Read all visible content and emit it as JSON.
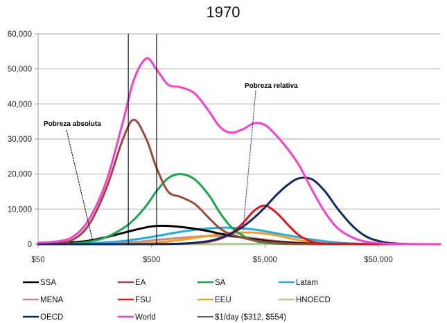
{
  "chart_data": {
    "type": "line",
    "title": "1970",
    "xlabel": "",
    "ylabel": "",
    "x_scale": "log",
    "xlim": [
      50,
      175000
    ],
    "ylim": [
      0,
      60000
    ],
    "grid": true,
    "legend_position": "bottom",
    "y_ticks": [
      "0",
      "10,000",
      "20,000",
      "30,000",
      "40,000",
      "50,000",
      "60,000"
    ],
    "y_tick_values": [
      0,
      10000,
      20000,
      30000,
      40000,
      50000,
      60000
    ],
    "x_ticks": [
      "$50",
      "$500",
      "$5,000",
      "$50,000"
    ],
    "x_tick_values": [
      50,
      500,
      5000,
      50000
    ],
    "vertical_lines": {
      "name": "$1/day ($312, $554)",
      "values": [
        312,
        554
      ],
      "color": "#000000"
    },
    "annotations": [
      {
        "text": "Pobreza absoluta",
        "points_to_x": 150,
        "points_to_y": 1500,
        "color": "#000000"
      },
      {
        "text": "Pobreza relativa",
        "points_to_x": 3200,
        "points_to_y": 3800,
        "color": "#3333cc"
      }
    ],
    "x": [
      50,
      70,
      100,
      140,
      200,
      280,
      350,
      450,
      550,
      700,
      900,
      1200,
      1600,
      2000,
      2500,
      3200,
      4000,
      5000,
      6300,
      8000,
      10000,
      13000,
      17000,
      22000,
      30000,
      40000,
      55000,
      75000,
      100000,
      175000
    ],
    "series": [
      {
        "name": "SSA",
        "color": "#000000",
        "values": [
          100,
          200,
          500,
          1000,
          2000,
          3200,
          4000,
          4800,
          5200,
          5200,
          4900,
          4400,
          3700,
          3000,
          2400,
          1900,
          1400,
          1000,
          700,
          450,
          300,
          180,
          100,
          60,
          30,
          15,
          5,
          0,
          0,
          0
        ]
      },
      {
        "name": "EA",
        "color": "#a0463c",
        "values": [
          100,
          300,
          1200,
          5500,
          16000,
          30000,
          35500,
          30000,
          22000,
          15000,
          13500,
          11500,
          7500,
          4500,
          2800,
          1800,
          1100,
          700,
          400,
          200,
          100,
          50,
          20,
          10,
          5,
          0,
          0,
          0,
          0,
          0
        ]
      },
      {
        "name": "SA",
        "color": "#14a84b",
        "values": [
          0,
          50,
          200,
          700,
          2000,
          4500,
          7000,
          11000,
          15000,
          18800,
          20000,
          18500,
          14000,
          9000,
          5000,
          2400,
          1000,
          400,
          150,
          50,
          20,
          5,
          0,
          0,
          0,
          0,
          0,
          0,
          0,
          0
        ]
      },
      {
        "name": "Latam",
        "color": "#1aaee8",
        "values": [
          0,
          50,
          100,
          250,
          500,
          900,
          1300,
          1800,
          2300,
          2900,
          3500,
          4100,
          4500,
          4700,
          4700,
          4500,
          4200,
          3700,
          3100,
          2500,
          1900,
          1300,
          800,
          450,
          200,
          80,
          30,
          10,
          0,
          0
        ]
      },
      {
        "name": "MENA",
        "color": "#c88a86",
        "values": [
          0,
          20,
          50,
          100,
          200,
          400,
          600,
          900,
          1200,
          1500,
          1800,
          2100,
          2300,
          2300,
          2200,
          2000,
          1700,
          1300,
          900,
          600,
          350,
          180,
          80,
          30,
          10,
          0,
          0,
          0,
          0,
          0
        ]
      },
      {
        "name": "FSU",
        "color": "#ee1111",
        "values": [
          0,
          0,
          0,
          0,
          0,
          0,
          0,
          10,
          20,
          50,
          120,
          300,
          700,
          1500,
          3000,
          6000,
          9500,
          11000,
          9000,
          5500,
          2500,
          700,
          150,
          30,
          0,
          0,
          0,
          0,
          0,
          0
        ]
      },
      {
        "name": "EEU",
        "color": "#ff9a16",
        "values": [
          0,
          0,
          0,
          10,
          30,
          80,
          150,
          300,
          500,
          800,
          1200,
          1800,
          2400,
          2900,
          3200,
          3300,
          3300,
          3000,
          2500,
          1800,
          1100,
          500,
          200,
          60,
          10,
          0,
          0,
          0,
          0,
          0
        ]
      },
      {
        "name": "HNOECD",
        "color": "#a8cc8c",
        "values": [
          0,
          0,
          0,
          0,
          0,
          0,
          0,
          0,
          0,
          0,
          0,
          0,
          0,
          10,
          20,
          40,
          60,
          90,
          120,
          150,
          160,
          150,
          120,
          80,
          40,
          15,
          5,
          0,
          0,
          0
        ]
      },
      {
        "name": "OECD",
        "color": "#0c2a66",
        "values": [
          0,
          0,
          0,
          0,
          0,
          0,
          0,
          0,
          20,
          60,
          150,
          400,
          900,
          1700,
          3000,
          5000,
          7500,
          10500,
          14000,
          17000,
          18800,
          18500,
          15000,
          10000,
          5000,
          2000,
          600,
          150,
          30,
          0
        ]
      },
      {
        "name": "World",
        "color": "#ff3ccc",
        "values": [
          400,
          700,
          2000,
          7000,
          18000,
          35000,
          47000,
          53000,
          50000,
          45500,
          44800,
          43000,
          38000,
          33500,
          31800,
          32800,
          34500,
          34000,
          31000,
          27000,
          22500,
          15500,
          9000,
          4500,
          1800,
          600,
          200,
          50,
          10,
          0
        ]
      }
    ]
  },
  "legend": {
    "items": [
      {
        "label": "SSA",
        "color": "#000000"
      },
      {
        "label": "EA",
        "color": "#a0463c"
      },
      {
        "label": "SA",
        "color": "#14a84b"
      },
      {
        "label": "Latam",
        "color": "#1aaee8"
      },
      {
        "label": "MENA",
        "color": "#c88a86"
      },
      {
        "label": "FSU",
        "color": "#ee1111"
      },
      {
        "label": "EEU",
        "color": "#ff9a16"
      },
      {
        "label": "HNOECD",
        "color": "#a8cc8c"
      },
      {
        "label": "OECD",
        "color": "#0c2a66"
      },
      {
        "label": "World",
        "color": "#ff3ccc"
      },
      {
        "label": "$1/day ($312, $554)",
        "color": "#000000"
      }
    ]
  }
}
